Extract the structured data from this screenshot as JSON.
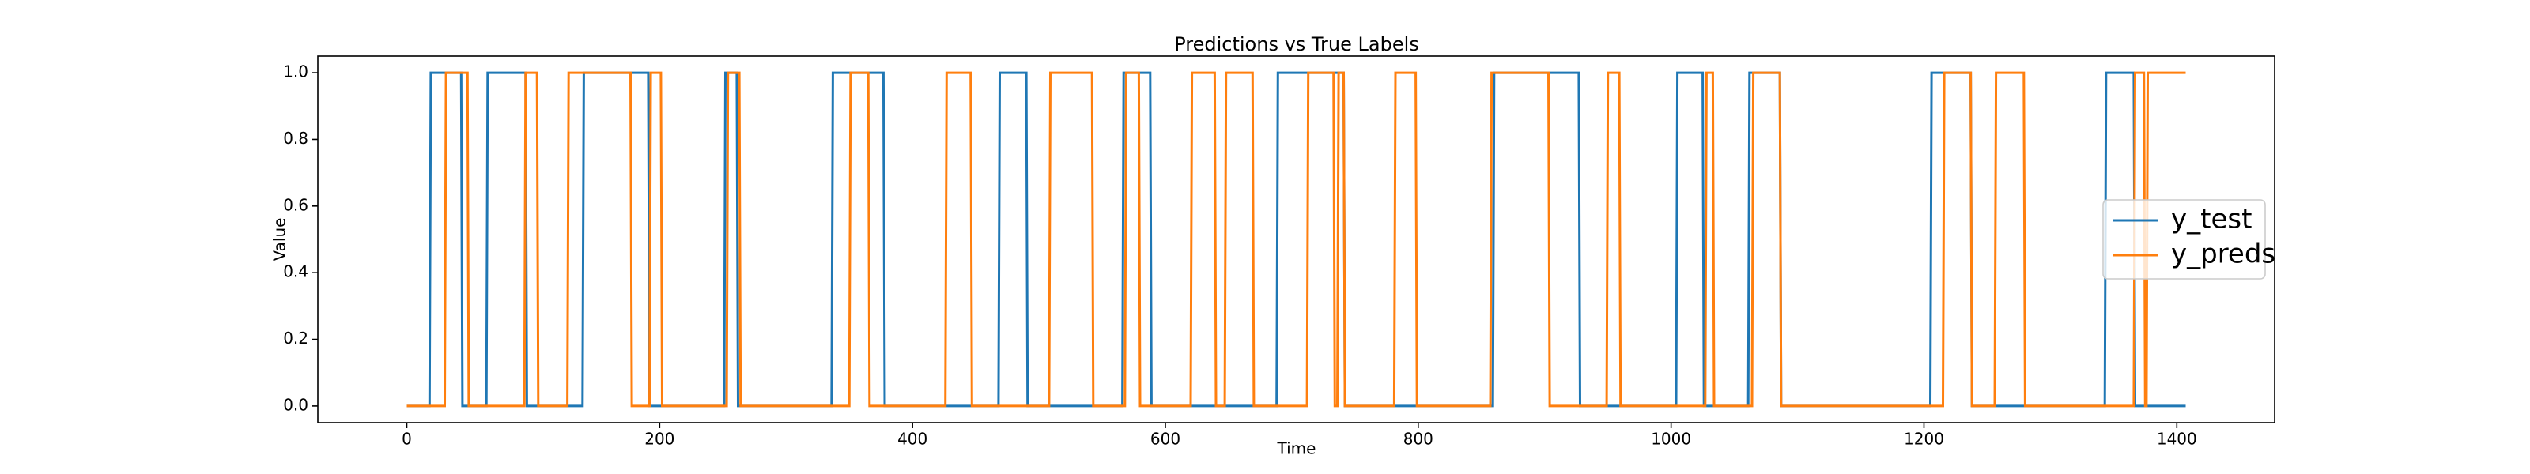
{
  "chart_data": {
    "type": "line",
    "title": "Predictions vs True Labels",
    "x_label": "Time",
    "y_label": "Value",
    "xlim": [
      -70.35,
      1477.35
    ],
    "ylim": [
      -0.05,
      1.05
    ],
    "xticks": [
      0,
      200,
      400,
      600,
      800,
      1000,
      1200,
      1400
    ],
    "yticks": [
      {
        "value": 0,
        "label": "0.0"
      },
      0.2,
      0.4,
      0.6,
      0.8,
      {
        "value": 1,
        "label": "1.0"
      }
    ],
    "legend": "center right",
    "series": [
      {
        "name": "y_test",
        "color": "#1f77b4",
        "x": [
          0,
          18,
          19,
          43,
          44,
          63,
          64,
          94,
          95,
          139,
          140,
          191,
          192,
          251,
          252,
          261,
          262,
          336,
          337,
          377,
          378,
          468,
          469,
          490,
          491,
          566,
          567,
          588,
          589,
          688,
          689,
          741,
          742,
          859,
          860,
          927,
          928,
          1004,
          1005,
          1025,
          1026,
          1061,
          1062,
          1086,
          1087,
          1205,
          1206,
          1237,
          1238,
          1343,
          1344,
          1366,
          1367,
          1407
        ],
        "values": [
          0,
          0,
          1,
          1,
          0,
          0,
          1,
          1,
          0,
          0,
          1,
          1,
          0,
          0,
          1,
          1,
          0,
          0,
          1,
          1,
          0,
          0,
          1,
          1,
          0,
          0,
          1,
          1,
          0,
          0,
          1,
          1,
          0,
          0,
          1,
          1,
          0,
          0,
          1,
          1,
          0,
          0,
          1,
          1,
          0,
          0,
          1,
          1,
          0,
          0,
          1,
          1,
          0,
          0
        ]
      },
      {
        "name": "y_preds",
        "color": "#ff7f0e",
        "x": [
          0,
          30,
          31,
          48,
          49,
          93,
          94,
          103,
          104,
          127,
          128,
          177,
          178,
          192,
          193,
          201,
          202,
          253,
          254,
          263,
          264,
          350,
          351,
          365,
          366,
          426,
          427,
          446,
          447,
          508,
          509,
          542,
          543,
          568,
          569,
          579,
          580,
          620,
          621,
          639,
          640,
          647,
          648,
          669,
          670,
          712,
          713,
          733,
          734,
          736,
          737,
          741,
          742,
          781,
          782,
          798,
          799,
          857,
          858,
          903,
          904,
          949,
          950,
          959,
          960,
          1027,
          1028,
          1033,
          1034,
          1064,
          1065,
          1086,
          1087,
          1215,
          1216,
          1237,
          1238,
          1256,
          1257,
          1279,
          1280,
          1366,
          1367,
          1374,
          1375,
          1376,
          1377,
          1407
        ],
        "values": [
          0,
          0,
          1,
          1,
          0,
          0,
          1,
          1,
          0,
          0,
          1,
          1,
          0,
          0,
          1,
          1,
          0,
          0,
          1,
          1,
          0,
          0,
          1,
          1,
          0,
          0,
          1,
          1,
          0,
          0,
          1,
          1,
          0,
          0,
          1,
          1,
          0,
          0,
          1,
          1,
          0,
          0,
          1,
          1,
          0,
          0,
          1,
          1,
          0,
          0,
          1,
          1,
          0,
          0,
          1,
          1,
          0,
          0,
          1,
          1,
          0,
          0,
          1,
          1,
          0,
          0,
          1,
          1,
          0,
          0,
          1,
          1,
          0,
          0,
          1,
          1,
          0,
          0,
          1,
          1,
          0,
          0,
          1,
          1,
          0,
          0,
          1,
          1
        ]
      }
    ]
  }
}
